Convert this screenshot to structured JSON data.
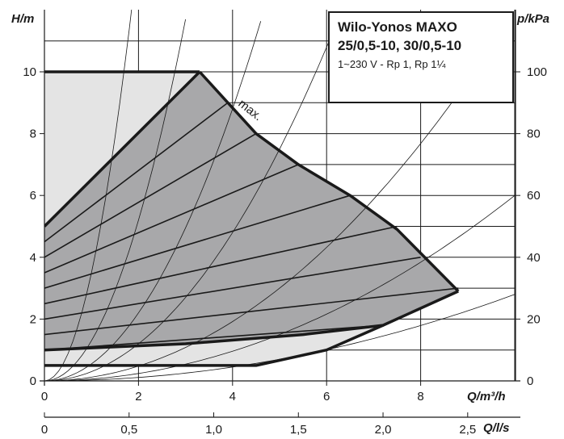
{
  "chart_data": {
    "type": "line",
    "title_lines": [
      "Wilo-Yonos MAXO",
      "25/0,5-10, 30/0,5-10"
    ],
    "subtitle": "1~230 V - Rp 1, Rp 1¼",
    "ylabel": "H/m",
    "ylabel_right": "p/kPa",
    "xlabel": "Q/m³/h",
    "xlabel_secondary": "Q/l/s",
    "xlim": [
      0,
      10
    ],
    "ylim": [
      0,
      11
    ],
    "ylim_right": [
      0,
      110
    ],
    "xlim_secondary": [
      0,
      2.78
    ],
    "x_ticks": [
      0,
      2,
      4,
      6,
      8
    ],
    "x_tick_labels": [
      "0",
      "2",
      "4",
      "6",
      "8"
    ],
    "y_ticks": [
      0,
      2,
      4,
      6,
      8,
      10
    ],
    "y_tick_labels": [
      "0",
      "2",
      "4",
      "6",
      "8",
      "10"
    ],
    "y_right_ticks": [
      0,
      20,
      40,
      60,
      80,
      100
    ],
    "y_right_tick_labels": [
      "0",
      "20",
      "40",
      "60",
      "80",
      "100"
    ],
    "x2_ticks": [
      0,
      0.5,
      1.0,
      1.5,
      2.0,
      2.5
    ],
    "x2_tick_labels": [
      "0",
      "0,5",
      "1,0",
      "1,5",
      "2,0",
      "2,5"
    ],
    "annotation": "max.",
    "grid": true,
    "operating_field": {
      "x": [
        0,
        0,
        3.3,
        5.4,
        6.5,
        7.5,
        8.8,
        7.2,
        6.0,
        4.5,
        0
      ],
      "y": [
        0.5,
        5.0,
        10.0,
        7.0,
        6.0,
        4.9,
        2.9,
        1.8,
        1.0,
        0.5,
        0.5
      ]
    },
    "max_curve": {
      "x": [
        3.3,
        3.9,
        4.5,
        5.4,
        6.5,
        7.5,
        8.8
      ],
      "y": [
        10.0,
        9.0,
        8.0,
        7.0,
        6.0,
        4.9,
        2.9
      ]
    },
    "min_curve": {
      "x": [
        0,
        3.0,
        5.5,
        7.2,
        8.8
      ],
      "y": [
        1.0,
        1.2,
        1.5,
        1.8,
        2.9
      ]
    },
    "bottom_limit": {
      "x": [
        0,
        4.5,
        6.0,
        7.2
      ],
      "y": [
        0.5,
        0.5,
        1.0,
        1.8
      ]
    },
    "setpoint_lines": [
      {
        "x": [
          0,
          3.9
        ],
        "y": [
          4.5,
          9.0
        ]
      },
      {
        "x": [
          0,
          4.5
        ],
        "y": [
          4.0,
          8.0
        ]
      },
      {
        "x": [
          0,
          5.4
        ],
        "y": [
          3.5,
          7.0
        ]
      },
      {
        "x": [
          0,
          6.5
        ],
        "y": [
          3.0,
          6.0
        ]
      },
      {
        "x": [
          0,
          7.5
        ],
        "y": [
          2.5,
          5.0
        ]
      },
      {
        "x": [
          0,
          8.0
        ],
        "y": [
          2.0,
          4.0
        ]
      },
      {
        "x": [
          0,
          8.8
        ],
        "y": [
          1.5,
          3.0
        ]
      },
      {
        "x": [
          0,
          7.2
        ],
        "y": [
          1.0,
          1.8
        ]
      }
    ],
    "system_curve_coefficients": [
      3.5,
      1.3,
      0.55,
      0.3,
      0.12,
      0.06,
      0.028
    ]
  }
}
